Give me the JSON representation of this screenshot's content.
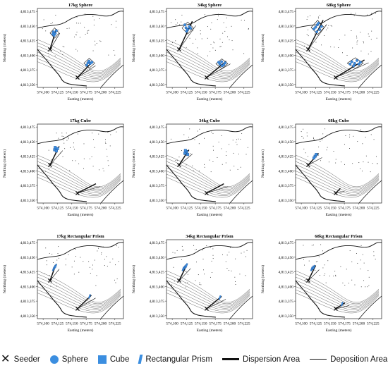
{
  "chart_data": {
    "type": "scatter",
    "xlabel": "Easting (meters)",
    "ylabel": "Northing (meters)",
    "x_ticks": [
      "574,100",
      "574,125",
      "574,150",
      "574,175",
      "574,200",
      "574,225"
    ],
    "y_ticks": [
      "4,813,475",
      "4,813,450",
      "4,813,425",
      "4,813,400",
      "4,813,375",
      "4,813,350"
    ],
    "xlim": [
      574090,
      574240
    ],
    "ylim": [
      4813345,
      4813480
    ],
    "seeder": [
      574112,
      4813410
    ],
    "seeder2": [
      574160,
      4813362
    ],
    "panels": [
      {
        "title": "17kg Sphere",
        "shape": "sphere",
        "near_dispersion_top": [
          574123,
          4813445
        ],
        "far_dispersion_top": [
          574184,
          4813387
        ],
        "near_points": [
          [
            574118,
            4813440
          ],
          [
            574121,
            4813437
          ],
          [
            574119,
            4813434
          ],
          [
            574123,
            4813442
          ],
          [
            574117,
            4813436
          ]
        ],
        "far_points": [
          [
            574178,
            4813387
          ],
          [
            574182,
            4813386
          ],
          [
            574180,
            4813390
          ],
          [
            574185,
            4813388
          ],
          [
            574176,
            4813383
          ]
        ]
      },
      {
        "title": "34kg Sphere",
        "shape": "sphere",
        "near_dispersion_top": [
          574135,
          4813458
        ],
        "far_dispersion_top": [
          574194,
          4813390
        ],
        "near_points": [
          [
            574124,
            4813447
          ],
          [
            574127,
            4813444
          ],
          [
            574130,
            4813449
          ],
          [
            574125,
            4813441
          ],
          [
            574122,
            4813452
          ],
          [
            574132,
            4813446
          ]
        ],
        "far_points": [
          [
            574183,
            4813385
          ],
          [
            574186,
            4813389
          ],
          [
            574190,
            4813384
          ],
          [
            574181,
            4813388
          ],
          [
            574187,
            4813382
          ],
          [
            574192,
            4813387
          ]
        ]
      },
      {
        "title": "68kg Sphere",
        "shape": "sphere",
        "near_dispersion_top": [
          574138,
          4813460
        ],
        "far_dispersion_top": [
          574210,
          4813392
        ],
        "near_points": [
          [
            574125,
            4813448
          ],
          [
            574128,
            4813452
          ],
          [
            574132,
            4813444
          ],
          [
            574122,
            4813445
          ],
          [
            574130,
            4813455
          ],
          [
            574135,
            4813449
          ],
          [
            574127,
            4813440
          ]
        ],
        "far_points": [
          [
            574188,
            4813389
          ],
          [
            574193,
            4813386
          ],
          [
            574197,
            4813391
          ],
          [
            574200,
            4813385
          ],
          [
            574191,
            4813382
          ],
          [
            574185,
            4813385
          ],
          [
            574203,
            4813388
          ]
        ]
      },
      {
        "title": "17kg Cube",
        "shape": "cube",
        "near_dispersion_top": [
          574128,
          4813442
        ],
        "far_dispersion_top": [
          574192,
          4813378
        ],
        "near_points": [
          [
            574120,
            4813436
          ],
          [
            574123,
            4813434
          ],
          [
            574121,
            4813440
          ],
          [
            574125,
            4813438
          ]
        ],
        "far_points": []
      },
      {
        "title": "34kg Cube",
        "shape": "cube",
        "near_dispersion_top": [
          574129,
          4813436
        ],
        "far_dispersion_top": [
          574190,
          4813378
        ],
        "near_points": [
          [
            574122,
            4813430
          ],
          [
            574125,
            4813433
          ],
          [
            574127,
            4813428
          ],
          [
            574123,
            4813435
          ]
        ],
        "far_points": []
      },
      {
        "title": "68kg Cube",
        "shape": "cube",
        "near_dispersion_top": [
          574130,
          4813430
        ],
        "far_dispersion_top": [
          574168,
          4813370
        ],
        "near_points": [
          [
            574124,
            4813425
          ],
          [
            574126,
            4813428
          ],
          [
            574122,
            4813422
          ]
        ],
        "far_points": []
      },
      {
        "title": "17kg Rectangular Prism",
        "shape": "prism",
        "near_dispersion_top": [
          574122,
          4813437
        ],
        "far_dispersion_top": [
          574184,
          4813385
        ],
        "near_points": [
          [
            574118,
            4813430
          ],
          [
            574120,
            4813433
          ],
          [
            574122,
            4813435
          ]
        ],
        "far_points": [
          [
            574181,
            4813383
          ]
        ]
      },
      {
        "title": "34kg Rectangular Prism",
        "shape": "prism",
        "near_dispersion_top": [
          574126,
          4813438
        ],
        "far_dispersion_top": [
          574186,
          4813383
        ],
        "near_points": [
          [
            574119,
            4813430
          ],
          [
            574121,
            4813432
          ],
          [
            574123,
            4813434
          ],
          [
            574125,
            4813436
          ]
        ],
        "far_points": [
          [
            574183,
            4813381
          ]
        ]
      },
      {
        "title": "68kg Rectangular Prism",
        "shape": "prism",
        "near_dispersion_top": [
          574125,
          4813436
        ],
        "far_dispersion_top": [
          574176,
          4813372
        ],
        "near_points": [
          [
            574118,
            4813430
          ],
          [
            574120,
            4813432
          ],
          [
            574122,
            4813433
          ]
        ],
        "far_points": [
          [
            574171,
            4813370
          ]
        ]
      }
    ]
  },
  "legend": {
    "seeder": "Seeder",
    "sphere": "Sphere",
    "cube": "Cube",
    "prism": "Rectangular Prism",
    "dispersion": "Dispersion Area",
    "deposition": "Deposition Area"
  },
  "colors": {
    "marker": "#3b8ee0",
    "marker_edge": "#1f4f96",
    "ink": "#111111",
    "contour": "#555555"
  }
}
